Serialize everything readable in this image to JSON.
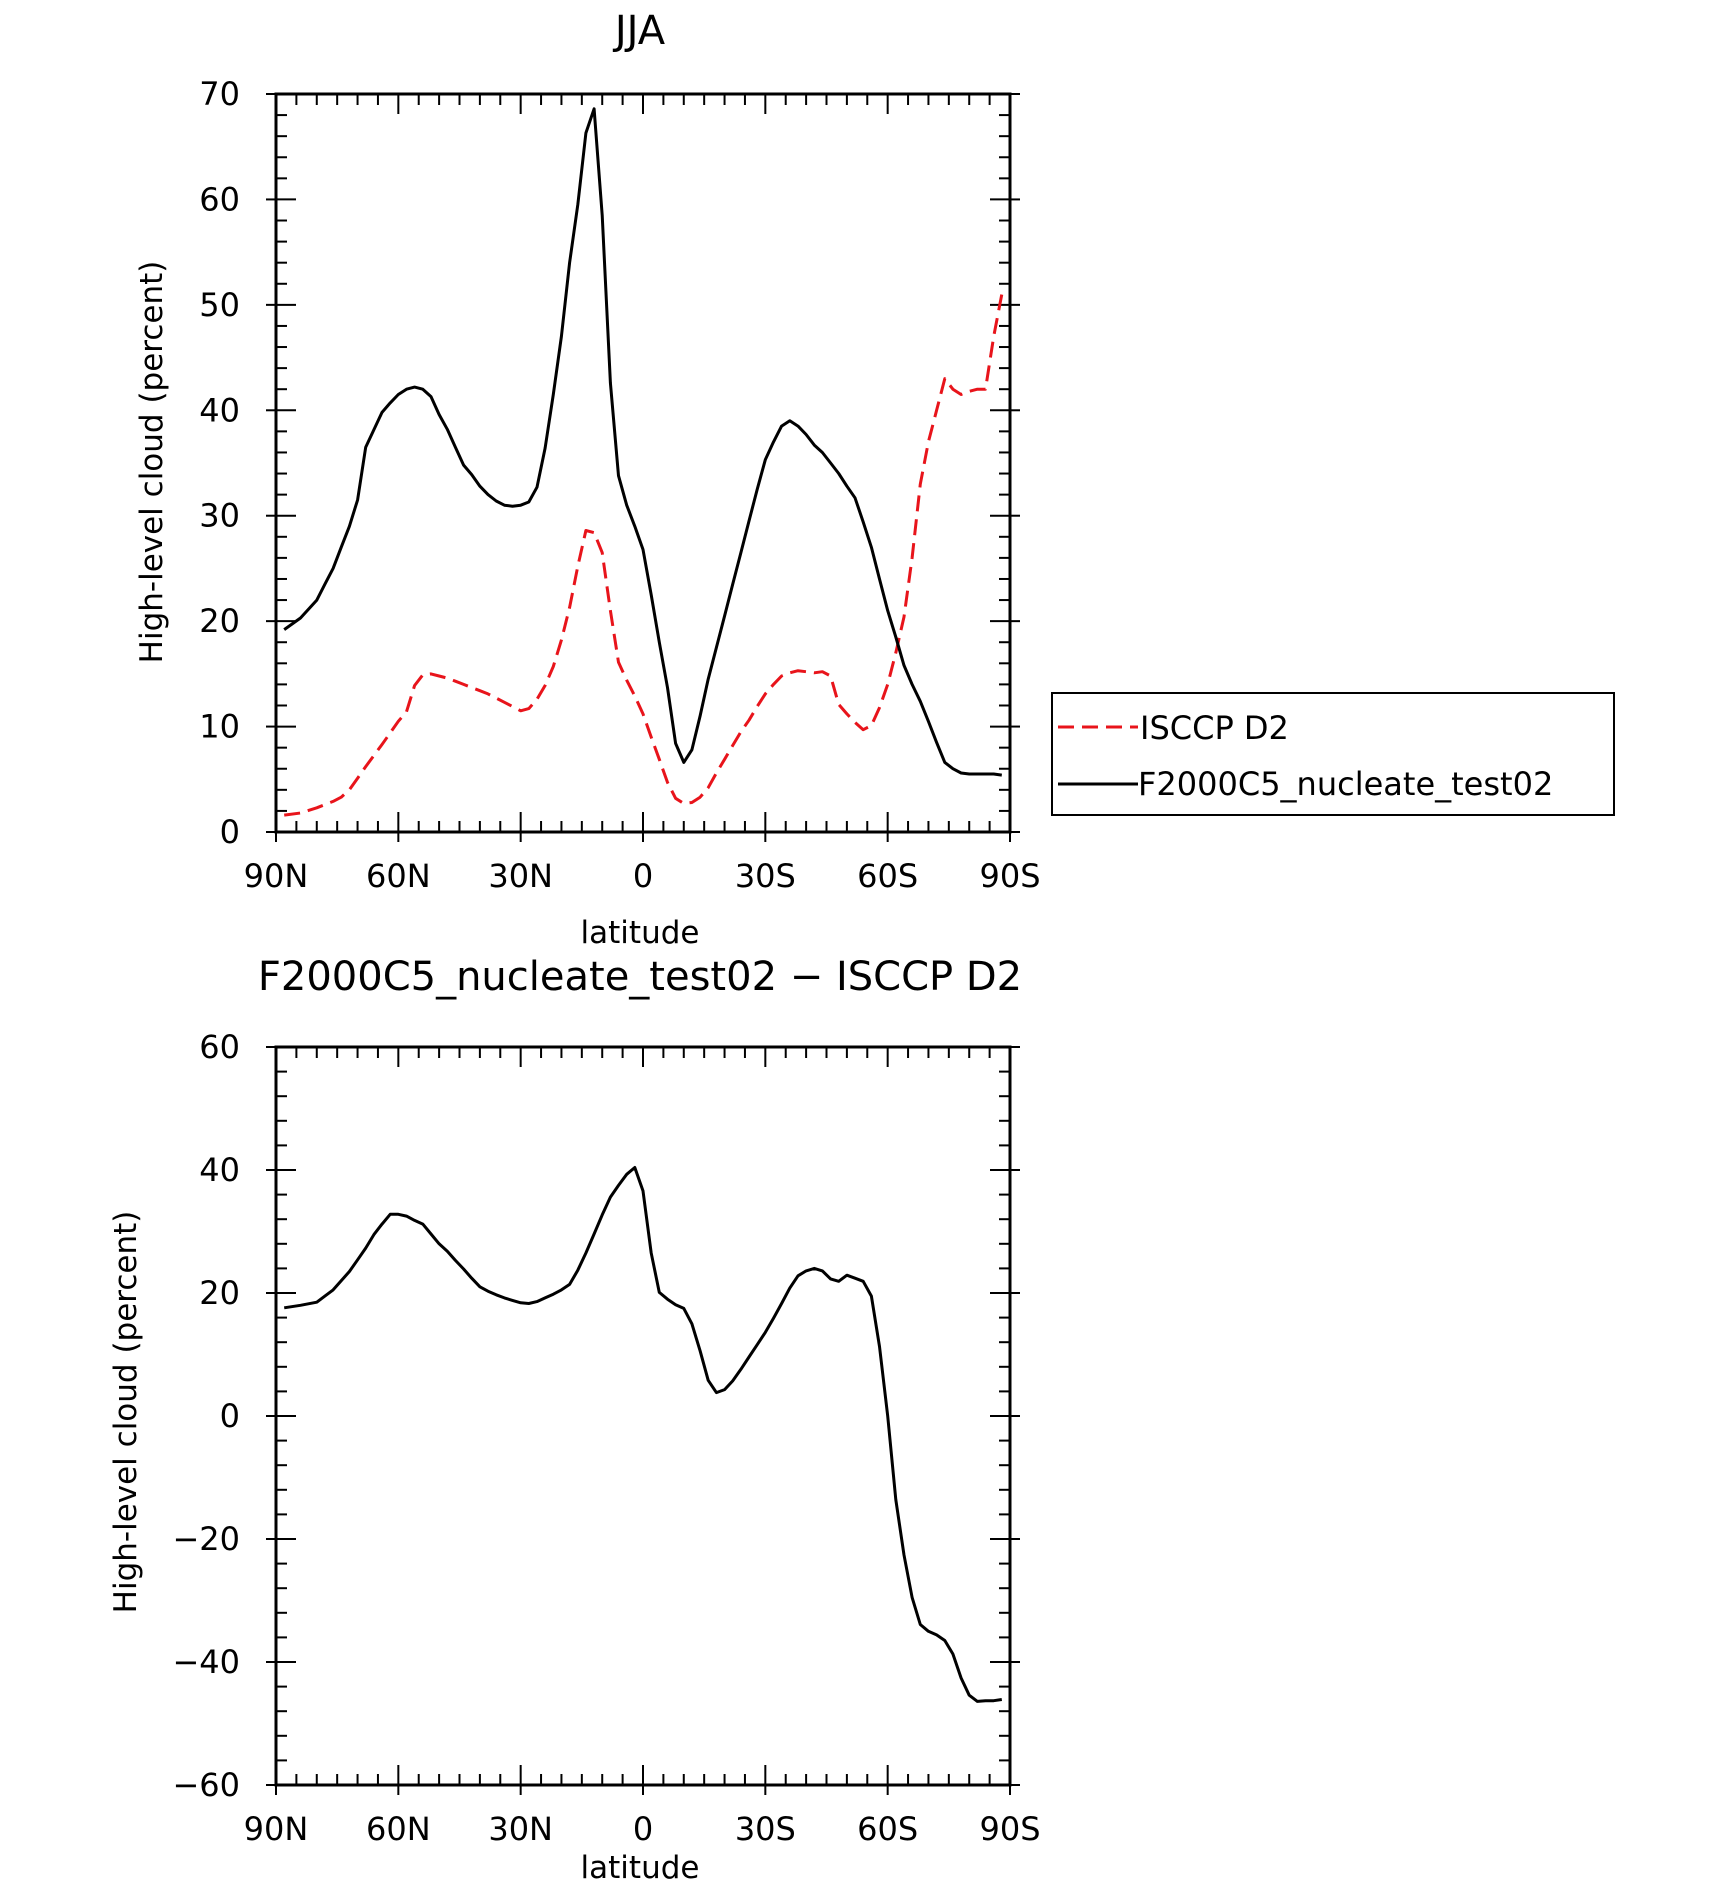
{
  "colors": {
    "obs_series": "#e8141b",
    "model_series": "#000000",
    "axes": "#000000",
    "background": "#ffffff"
  },
  "chart_data": [
    {
      "type": "line",
      "title": "JJA",
      "xlabel": "latitude",
      "ylabel": "High-level cloud (percent)",
      "xlim": [
        90,
        -90
      ],
      "ylim": [
        0,
        70
      ],
      "xticks": [
        {
          "value": 90,
          "label": "90N"
        },
        {
          "value": 60,
          "label": "60N"
        },
        {
          "value": 30,
          "label": "30N"
        },
        {
          "value": 0,
          "label": "0"
        },
        {
          "value": -30,
          "label": "30S"
        },
        {
          "value": -60,
          "label": "60S"
        },
        {
          "value": -90,
          "label": "90S"
        }
      ],
      "yticks": [
        0,
        10,
        20,
        30,
        40,
        50,
        60,
        70
      ],
      "x": [
        88,
        84,
        80,
        78,
        76,
        74,
        72,
        70,
        68,
        64,
        62,
        60,
        58,
        56,
        54,
        52,
        50,
        48,
        46,
        44,
        42,
        40,
        38,
        36,
        34,
        32,
        30,
        28,
        26,
        24,
        22,
        20,
        18,
        16,
        14,
        12,
        10,
        8,
        6,
        4,
        2,
        0,
        -2,
        -4,
        -6,
        -8,
        -10,
        -12,
        -14,
        -16,
        -18,
        -20,
        -22,
        -24,
        -26,
        -28,
        -30,
        -32,
        -34,
        -36,
        -38,
        -40,
        -42,
        -44,
        -46,
        -48,
        -50,
        -52,
        -54,
        -56,
        -58,
        -60,
        -62,
        -64,
        -66,
        -68,
        -70,
        -72,
        -74,
        -76,
        -78,
        -80,
        -82,
        -84,
        -86,
        -88
      ],
      "legend": {
        "position": "right",
        "entries": [
          "ISCCP D2",
          "F2000C5_nucleate_test02"
        ]
      },
      "series": [
        {
          "name": "ISCCP D2",
          "style": "dashed",
          "color": "#e8141b",
          "values": [
            1.6,
            1.8,
            2.3,
            2.6,
            2.9,
            3.3,
            4.0,
            5.1,
            6.2,
            8.3,
            9.4,
            10.5,
            11.4,
            13.9,
            14.9,
            15.0,
            14.8,
            14.6,
            14.3,
            14.0,
            13.7,
            13.4,
            13.1,
            12.7,
            12.3,
            11.9,
            11.5,
            11.7,
            12.6,
            13.9,
            15.7,
            18.2,
            21.3,
            25.2,
            28.6,
            28.4,
            26.5,
            21.0,
            16.1,
            14.4,
            12.9,
            11.2,
            9.0,
            6.9,
            4.7,
            3.2,
            2.7,
            2.8,
            3.3,
            4.2,
            5.6,
            6.9,
            8.2,
            9.5,
            10.6,
            11.9,
            13.1,
            14.0,
            14.8,
            15.1,
            15.3,
            15.2,
            15.1,
            15.2,
            14.8,
            12.1,
            11.2,
            10.4,
            9.7,
            10.1,
            11.8,
            14.0,
            17.0,
            20.4,
            26.0,
            33.0,
            37.0,
            40.0,
            43.0,
            42.0,
            41.5,
            41.8,
            42.0,
            42.0,
            47.0,
            51.0
          ]
        },
        {
          "name": "F2000C5_nucleate_test02",
          "style": "solid",
          "color": "#000000",
          "values": [
            19.2,
            20.3,
            22.0,
            23.5,
            25.0,
            27.0,
            29.0,
            31.5,
            36.5,
            39.8,
            40.7,
            41.5,
            42.0,
            42.2,
            42.0,
            41.3,
            39.6,
            38.2,
            36.5,
            34.8,
            33.9,
            32.8,
            32.0,
            31.4,
            31.0,
            30.9,
            31.0,
            31.3,
            32.7,
            36.4,
            41.5,
            47.0,
            54.0,
            59.5,
            66.3,
            68.6,
            58.5,
            42.6,
            33.8,
            31.0,
            29.0,
            26.8,
            22.5,
            18.0,
            13.7,
            8.4,
            6.6,
            7.8,
            11.0,
            14.5,
            17.5,
            20.5,
            23.5,
            26.5,
            29.5,
            32.5,
            35.3,
            37.0,
            38.5,
            39.0,
            38.5,
            37.7,
            36.7,
            36.0,
            35.0,
            34.0,
            32.8,
            31.7,
            29.4,
            27.0,
            24.0,
            21.0,
            18.5,
            15.8,
            14.0,
            12.4,
            10.5,
            8.5,
            6.6,
            6.0,
            5.6,
            5.5,
            5.5,
            5.5,
            5.5,
            5.4
          ]
        }
      ]
    },
    {
      "type": "line",
      "title": "F2000C5_nucleate_test02 − ISCCP D2",
      "xlabel": "latitude",
      "ylabel": "High-level cloud (percent)",
      "xlim": [
        90,
        -90
      ],
      "ylim": [
        -60,
        60
      ],
      "xticks": [
        {
          "value": 90,
          "label": "90N"
        },
        {
          "value": 60,
          "label": "60N"
        },
        {
          "value": 30,
          "label": "30N"
        },
        {
          "value": 0,
          "label": "0"
        },
        {
          "value": -30,
          "label": "30S"
        },
        {
          "value": -60,
          "label": "60S"
        },
        {
          "value": -90,
          "label": "90S"
        }
      ],
      "yticks": [
        {
          "value": 60,
          "label": "60"
        },
        {
          "value": 40,
          "label": "40"
        },
        {
          "value": 20,
          "label": "20"
        },
        {
          "value": 0,
          "label": "0"
        },
        {
          "value": -20,
          "label": "−20"
        },
        {
          "value": -40,
          "label": "−40"
        },
        {
          "value": -60,
          "label": "−60"
        }
      ],
      "x": [
        88,
        84,
        80,
        78,
        76,
        74,
        72,
        70,
        68,
        66,
        64,
        62,
        60,
        58,
        56,
        54,
        52,
        50,
        48,
        46,
        44,
        42,
        40,
        38,
        36,
        34,
        32,
        30,
        28,
        26,
        24,
        22,
        20,
        18,
        16,
        14,
        12,
        10,
        8,
        6,
        4,
        2,
        0,
        -2,
        -4,
        -6,
        -8,
        -10,
        -12,
        -14,
        -16,
        -18,
        -20,
        -22,
        -24,
        -26,
        -28,
        -30,
        -32,
        -34,
        -36,
        -38,
        -40,
        -42,
        -44,
        -46,
        -48,
        -50,
        -52,
        -54,
        -56,
        -58,
        -60,
        -62,
        -64,
        -66,
        -68,
        -70,
        -72,
        -74,
        -76,
        -78,
        -80,
        -82,
        -84,
        -86,
        -88
      ],
      "series": [
        {
          "name": "",
          "style": "solid",
          "color": "#000000",
          "values": [
            17.6,
            18.0,
            18.5,
            19.5,
            20.5,
            22.0,
            23.5,
            25.4,
            27.3,
            29.5,
            31.2,
            32.8,
            32.8,
            32.5,
            31.8,
            31.2,
            29.6,
            28.0,
            26.8,
            25.3,
            23.9,
            22.4,
            21.0,
            20.3,
            19.7,
            19.2,
            18.8,
            18.4,
            18.3,
            18.6,
            19.2,
            19.8,
            20.5,
            21.4,
            23.7,
            26.5,
            29.6,
            32.7,
            35.6,
            37.5,
            39.3,
            40.4,
            36.6,
            26.5,
            20.1,
            19.0,
            18.1,
            17.5,
            15.0,
            10.6,
            5.8,
            3.8,
            4.3,
            5.7,
            7.6,
            9.6,
            11.6,
            13.6,
            15.9,
            18.3,
            20.8,
            22.8,
            23.6,
            24.0,
            23.6,
            22.3,
            21.9,
            22.9,
            22.4,
            21.9,
            19.5,
            11.3,
            0,
            -13.6,
            -22.6,
            -29.5,
            -33.9,
            -35.0,
            -35.6,
            -36.5,
            -38.7,
            -42.6,
            -45.4,
            -46.4,
            -46.3,
            -46.3,
            -46.1
          ]
        }
      ]
    }
  ]
}
